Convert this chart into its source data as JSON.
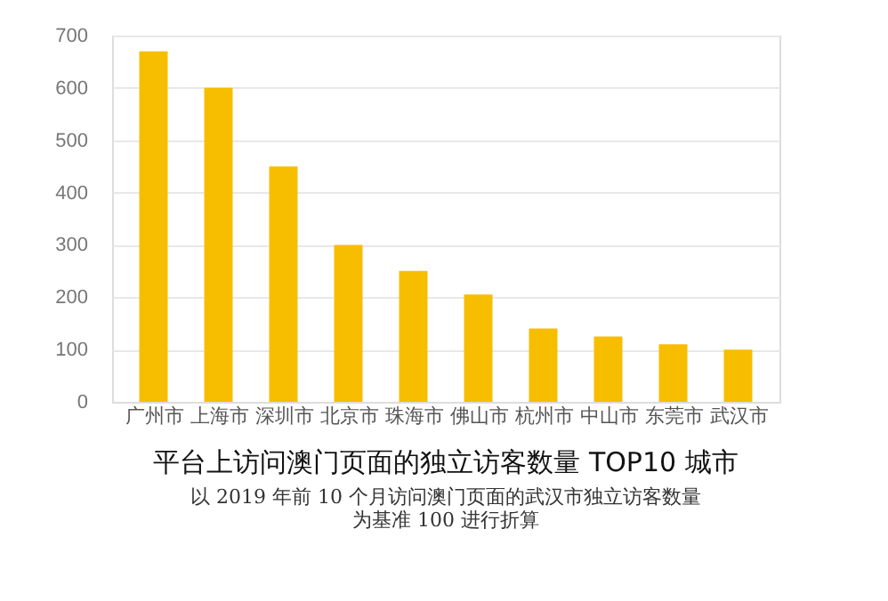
{
  "chart_data": {
    "type": "bar",
    "title": "平台上访问澳门页面的独立访客数量 TOP10 城市",
    "annotations": [
      "以 2019 年前 10 个月访问澳门页面的武汉市独立访客数量为基准 100 进行折算"
    ],
    "categories": [
      "广州市",
      "上海市",
      "深圳市",
      "北京市",
      "珠海市",
      "佛山市",
      "杭州市",
      "中山市",
      "东莞市",
      "武汉市"
    ],
    "values": [
      670,
      600,
      450,
      300,
      250,
      205,
      140,
      125,
      110,
      100
    ],
    "color": "#f7be00",
    "ylim": [
      0,
      700
    ],
    "yticks": [
      0,
      100,
      200,
      300,
      400,
      500,
      600,
      700
    ],
    "grid": "y"
  }
}
